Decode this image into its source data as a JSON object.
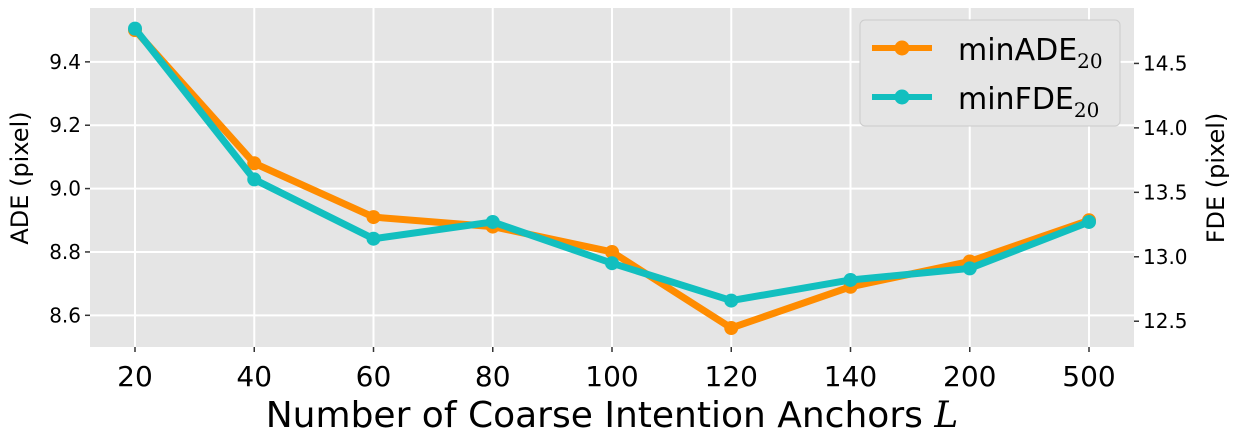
{
  "chart_data": {
    "type": "line",
    "title": "",
    "xlabel_text": "Number of Coarse Intention Anchors ",
    "xlabel_symbol": "L",
    "ylabel_left": "ADE (pixel)",
    "ylabel_right": "FDE (pixel)",
    "categories": [
      "20",
      "40",
      "60",
      "80",
      "100",
      "120",
      "140",
      "200",
      "500"
    ],
    "y_left": {
      "lim": [
        8.5,
        9.57
      ],
      "ticks": [
        8.6,
        8.8,
        9.0,
        9.2,
        9.4
      ],
      "tick_labels": [
        "8.6",
        "8.8",
        "9.0",
        "9.2",
        "9.4"
      ]
    },
    "y_right": {
      "lim": [
        12.3,
        14.93
      ],
      "ticks": [
        12.5,
        13.0,
        13.5,
        14.0,
        14.5
      ],
      "tick_labels": [
        "12.5",
        "13.0",
        "13.5",
        "14.0",
        "14.5"
      ]
    },
    "series": [
      {
        "name": "minADE",
        "subscript": "20",
        "axis": "left",
        "color": "#ff8c00",
        "values": [
          9.5,
          9.08,
          8.91,
          8.88,
          8.8,
          8.56,
          8.69,
          8.77,
          8.9
        ]
      },
      {
        "name": "minFDE",
        "subscript": "20",
        "axis": "right",
        "color": "#12bfbf",
        "values": [
          14.77,
          13.6,
          13.14,
          13.27,
          12.95,
          12.66,
          12.82,
          12.91,
          13.27
        ]
      }
    ],
    "grid": true,
    "legend_position": "top-right",
    "background": "#e5e5e5"
  }
}
